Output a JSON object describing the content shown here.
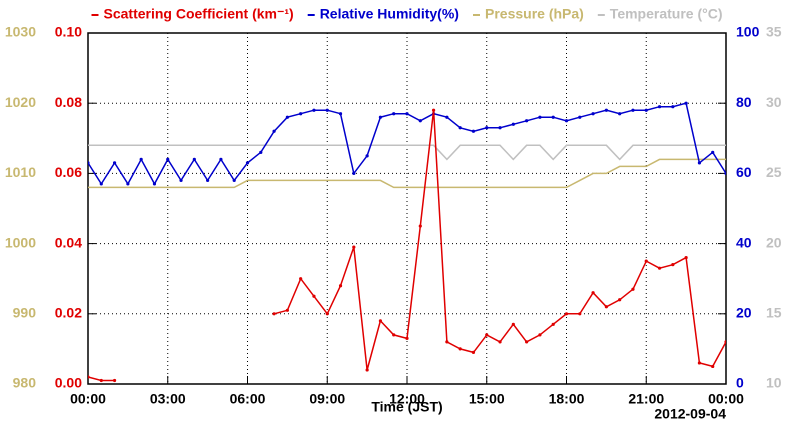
{
  "chart_data": {
    "type": "line",
    "xlabel": "Time (JST)",
    "annotation": "2012-09-04",
    "x": [
      0,
      0.5,
      1,
      1.5,
      2,
      2.5,
      3,
      3.5,
      4,
      4.5,
      5,
      5.5,
      6,
      6.5,
      7,
      7.5,
      8,
      8.5,
      9,
      9.5,
      10,
      10.5,
      11,
      11.5,
      12,
      12.5,
      13,
      13.5,
      14,
      14.5,
      15,
      15.5,
      16,
      16.5,
      17,
      17.5,
      18,
      18.5,
      19,
      19.5,
      20,
      20.5,
      21,
      21.5,
      22,
      22.5,
      23,
      23.5,
      24
    ],
    "xlim": [
      0,
      24
    ],
    "xticks": [
      {
        "value": 0,
        "label": "00:00"
      },
      {
        "value": 3,
        "label": "03:00"
      },
      {
        "value": 6,
        "label": "06:00"
      },
      {
        "value": 9,
        "label": "09:00"
      },
      {
        "value": 12,
        "label": "12:00"
      },
      {
        "value": 15,
        "label": "15:00"
      },
      {
        "value": 18,
        "label": "18:00"
      },
      {
        "value": 21,
        "label": "21:00"
      },
      {
        "value": 24,
        "label": "00:00"
      }
    ],
    "ylim": [
      0,
      0.1
    ],
    "yticks": [
      {
        "value": 0,
        "label": "0.00"
      },
      {
        "value": 0.02,
        "label": "0.02"
      },
      {
        "value": 0.04,
        "label": "0.04"
      },
      {
        "value": 0.06,
        "label": "0.06"
      },
      {
        "value": 0.08,
        "label": "0.08"
      },
      {
        "value": 0.1,
        "label": "0.10"
      }
    ],
    "y2lim": [
      0,
      100
    ],
    "y2ticks": [
      0,
      20,
      40,
      60,
      80,
      100
    ],
    "y3lim": [
      980,
      1030
    ],
    "y3ticks": [
      980,
      990,
      1000,
      1010,
      1020,
      1030
    ],
    "y4lim": [
      10,
      35
    ],
    "y4ticks": [
      10,
      15,
      20,
      25,
      30,
      35
    ],
    "grid": true,
    "series": [
      {
        "name": "Scattering Coefficient (km⁻¹)",
        "color": "#e00000",
        "axis": "y",
        "values": [
          0.002,
          0.001,
          0.001,
          null,
          null,
          null,
          null,
          null,
          null,
          null,
          null,
          null,
          null,
          null,
          0.02,
          0.021,
          0.03,
          0.025,
          0.02,
          0.028,
          0.039,
          0.004,
          0.018,
          0.014,
          0.013,
          0.045,
          0.078,
          0.012,
          0.01,
          0.009,
          0.014,
          0.012,
          0.017,
          0.012,
          0.014,
          0.017,
          0.02,
          0.02,
          0.026,
          0.022,
          0.024,
          0.027,
          0.035,
          0.033,
          0.034,
          0.036,
          0.006,
          0.005,
          0.012
        ]
      },
      {
        "name": "Relative Humidity(%)",
        "color": "#0000cc",
        "axis": "y2",
        "values": [
          63,
          57,
          63,
          57,
          64,
          57,
          64,
          58,
          64,
          58,
          64,
          58,
          63,
          66,
          72,
          76,
          77,
          78,
          78,
          77,
          60,
          65,
          76,
          77,
          77,
          75,
          77,
          76,
          73,
          72,
          73,
          73,
          74,
          75,
          76,
          76,
          75,
          76,
          77,
          78,
          77,
          78,
          78,
          79,
          79,
          80,
          63,
          66,
          60
        ]
      },
      {
        "name": "Pressure (hPa)",
        "color": "#c8b870",
        "axis": "y3",
        "values": [
          1008,
          1008,
          1008,
          1008,
          1008,
          1008,
          1008,
          1008,
          1008,
          1008,
          1008,
          1008,
          1009,
          1009,
          1009,
          1009,
          1009,
          1009,
          1009,
          1009,
          1009,
          1009,
          1009,
          1008,
          1008,
          1008,
          1008,
          1008,
          1008,
          1008,
          1008,
          1008,
          1008,
          1008,
          1008,
          1008,
          1008,
          1009,
          1010,
          1010,
          1011,
          1011,
          1011,
          1012,
          1012,
          1012,
          1012,
          1012,
          1012
        ]
      },
      {
        "name": "Temperature (°C)",
        "color": "#c0c0c0",
        "axis": "y4",
        "values": [
          27,
          27,
          27,
          27,
          27,
          27,
          27,
          27,
          27,
          27,
          27,
          27,
          27,
          27,
          27,
          27,
          27,
          27,
          27,
          27,
          27,
          27,
          27,
          27,
          27,
          27,
          27,
          26,
          27,
          27,
          27,
          27,
          26,
          27,
          27,
          26,
          27,
          27,
          27,
          27,
          26,
          27,
          27,
          27,
          27,
          27,
          27,
          27,
          27
        ]
      }
    ]
  }
}
